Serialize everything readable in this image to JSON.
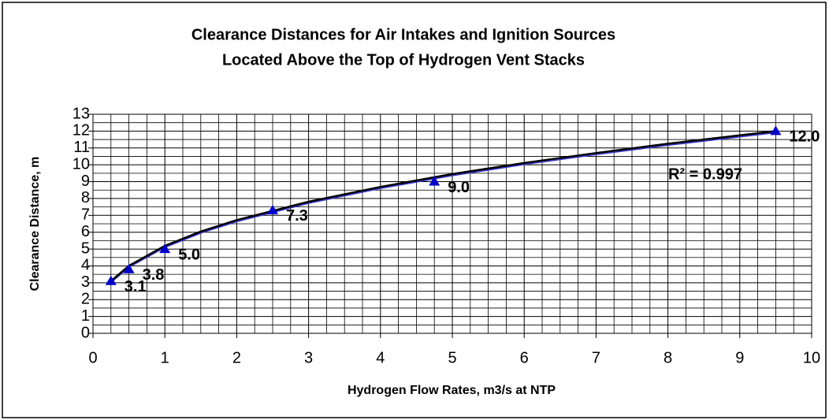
{
  "chart_data": {
    "type": "scatter",
    "title": [
      "Clearance Distances for Air Intakes and Ignition Sources",
      "Located Above the Top of Hydrogen Vent Stacks"
    ],
    "x_label": "Hydrogen Flow Rates, m3/s at NTP",
    "y_label": "Clearance Distance, m",
    "x": [
      0.25,
      0.5,
      1,
      2.5,
      4.75,
      9.5
    ],
    "values": [
      3.1,
      3.8,
      5.0,
      7.3,
      9.0,
      12.0
    ],
    "value_labels": [
      "3.1",
      "3.8",
      "5.0",
      "7.3",
      "9.0",
      "12.0"
    ],
    "color": "#0000cc",
    "trendline": {
      "x": [
        0.25,
        0.5,
        1,
        1.5,
        2,
        3,
        4,
        5,
        6,
        7,
        8,
        9,
        9.5
      ],
      "values": [
        3.1,
        4.01,
        5.19,
        6.04,
        6.72,
        7.81,
        8.69,
        9.45,
        10.11,
        10.7,
        11.25,
        11.75,
        12.0
      ],
      "color": "#000000",
      "shadow_color": "#3333cc"
    },
    "annotation": "R² = 0.997",
    "xlim": [
      0,
      10
    ],
    "ylim": [
      0,
      13
    ],
    "xticks": [
      0,
      1,
      2,
      3,
      4,
      5,
      6,
      7,
      8,
      9,
      10
    ],
    "yticks": [
      0,
      1,
      2,
      3,
      4,
      5,
      6,
      7,
      8,
      9,
      10,
      11,
      12,
      13
    ],
    "x_minor_divisions": 4,
    "y_minor_divisions": 2,
    "grid": true
  }
}
